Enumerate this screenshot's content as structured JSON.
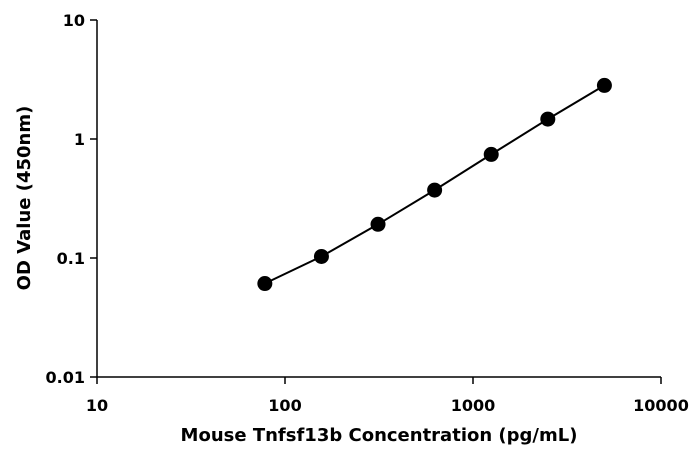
{
  "chart_data": {
    "type": "line",
    "title": "",
    "xlabel": "Mouse Tnfsf13b Concentration  (pg/mL)",
    "ylabel": "OD Value (450nm)",
    "x_scale": "log",
    "y_scale": "log",
    "xlim": [
      10,
      10000
    ],
    "ylim": [
      0.01,
      10
    ],
    "x_ticks": [
      10,
      100,
      1000,
      10000
    ],
    "y_ticks": [
      0.01,
      0.1,
      1,
      10
    ],
    "x_tick_labels": [
      "10",
      "100",
      "1000",
      "10000"
    ],
    "y_tick_labels": [
      "0.01",
      "0.1",
      "1",
      "10"
    ],
    "grid": false,
    "legend": false,
    "series": [
      {
        "x": [
          78.125,
          156.25,
          312.5,
          625,
          1250,
          2500,
          5000
        ],
        "y": [
          0.061,
          0.103,
          0.192,
          0.372,
          0.742,
          1.47,
          2.82
        ]
      }
    ],
    "colors": {
      "line": "#000000",
      "marker": "#000000",
      "axis": "#000000"
    }
  }
}
